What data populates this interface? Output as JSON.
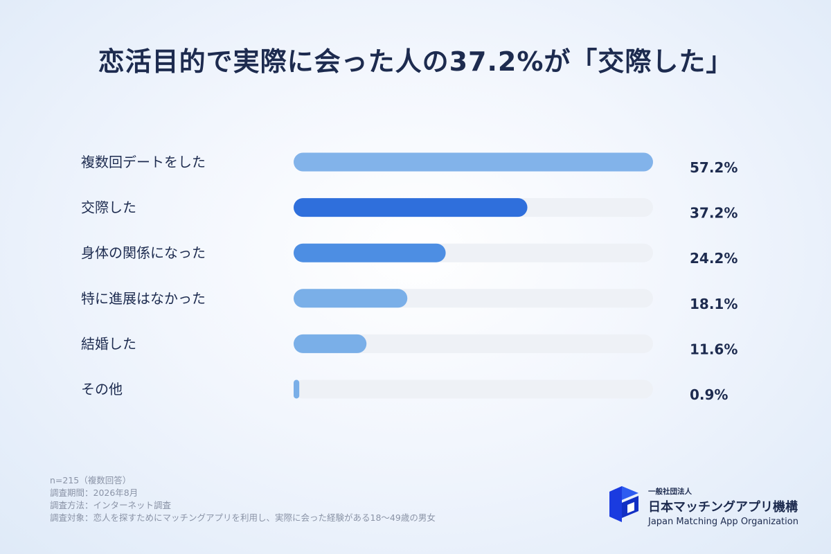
{
  "header": {
    "title": "恋活目的で実際に会った人の37.2%が「交際した」"
  },
  "chart_data": {
    "type": "bar",
    "orientation": "horizontal",
    "categories": [
      "複数回デートをした",
      "交際した",
      "身体の関係になった",
      "特に進展はなかった",
      "結婚した",
      "その他"
    ],
    "values": [
      57.2,
      37.2,
      24.2,
      18.1,
      11.6,
      0.9
    ],
    "value_labels": [
      "57.2%",
      "37.2%",
      "24.2%",
      "18.1%",
      "11.6%",
      "0.9%"
    ],
    "xlim": [
      0,
      57.2
    ],
    "grid": false,
    "legend": "none",
    "colors": [
      "#82b3ea",
      "#2f6fdc",
      "#4d8ee3",
      "#7aafe8",
      "#7aafe8",
      "#7aafe8"
    ],
    "track_color": "#eef1f6"
  },
  "notes": {
    "sample": "n=215（複数回答）",
    "period": "調査期間：2026年8月",
    "method": "調査方法：インターネット調査",
    "target": "調査対象：恋人を探すためにマッチングアプリを利用し、実際に会った経験がある18〜49歳の男女"
  },
  "logo": {
    "org_type": "一般社団法人",
    "name": "日本マッチングアプリ機構",
    "name_en": "Japan Matching App Organization",
    "color": "#1a3be0"
  }
}
